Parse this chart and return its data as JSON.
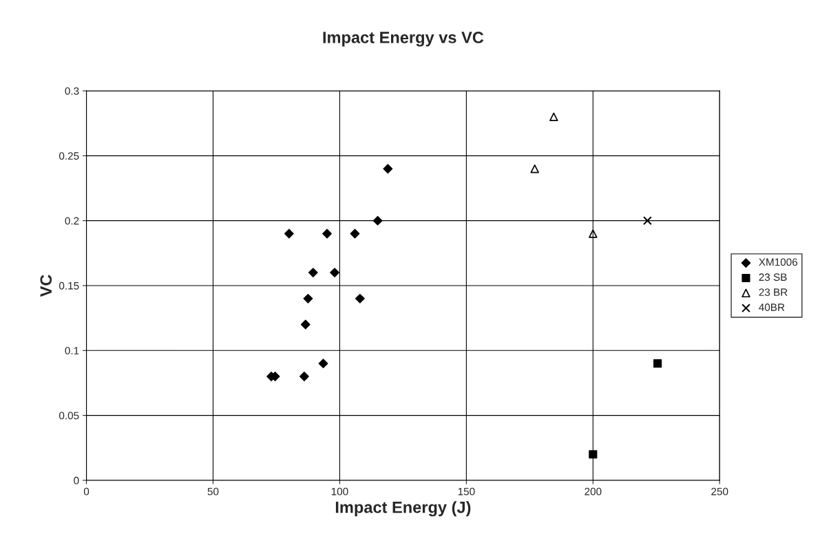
{
  "chart_data": {
    "type": "scatter",
    "title": "Impact Energy vs VC",
    "xlabel": "Impact Energy (J)",
    "ylabel": "VC",
    "xlim": [
      0,
      250
    ],
    "xticks": [
      0,
      50,
      100,
      150,
      200,
      250
    ],
    "ylim": [
      0,
      0.3
    ],
    "yticks": [
      0,
      0.05,
      0.1,
      0.15,
      0.2,
      0.25,
      0.3
    ],
    "grid": true,
    "legend": "right",
    "series": [
      {
        "name": "XM1006",
        "color": "#000000",
        "marker": "diamond",
        "x": [
          73,
          74.5,
          86,
          93.5,
          86.5,
          87.5,
          108,
          89.5,
          98,
          80,
          95,
          106,
          115,
          119
        ],
        "values": [
          0.08,
          0.08,
          0.08,
          0.09,
          0.12,
          0.14,
          0.14,
          0.16,
          0.16,
          0.19,
          0.19,
          0.19,
          0.2,
          0.24
        ]
      },
      {
        "name": "23 SB",
        "color": "#000000",
        "marker": "square",
        "x": [
          200,
          225.5
        ],
        "values": [
          0.02,
          0.09
        ]
      },
      {
        "name": "23 BR",
        "color": "#000000",
        "marker": "triangle",
        "x": [
          184.5,
          177,
          200
        ],
        "values": [
          0.28,
          0.24,
          0.19
        ]
      },
      {
        "name": "40BR",
        "color": "#000000",
        "marker": "cross",
        "x": [
          221.5
        ],
        "values": [
          0.2
        ]
      }
    ]
  }
}
